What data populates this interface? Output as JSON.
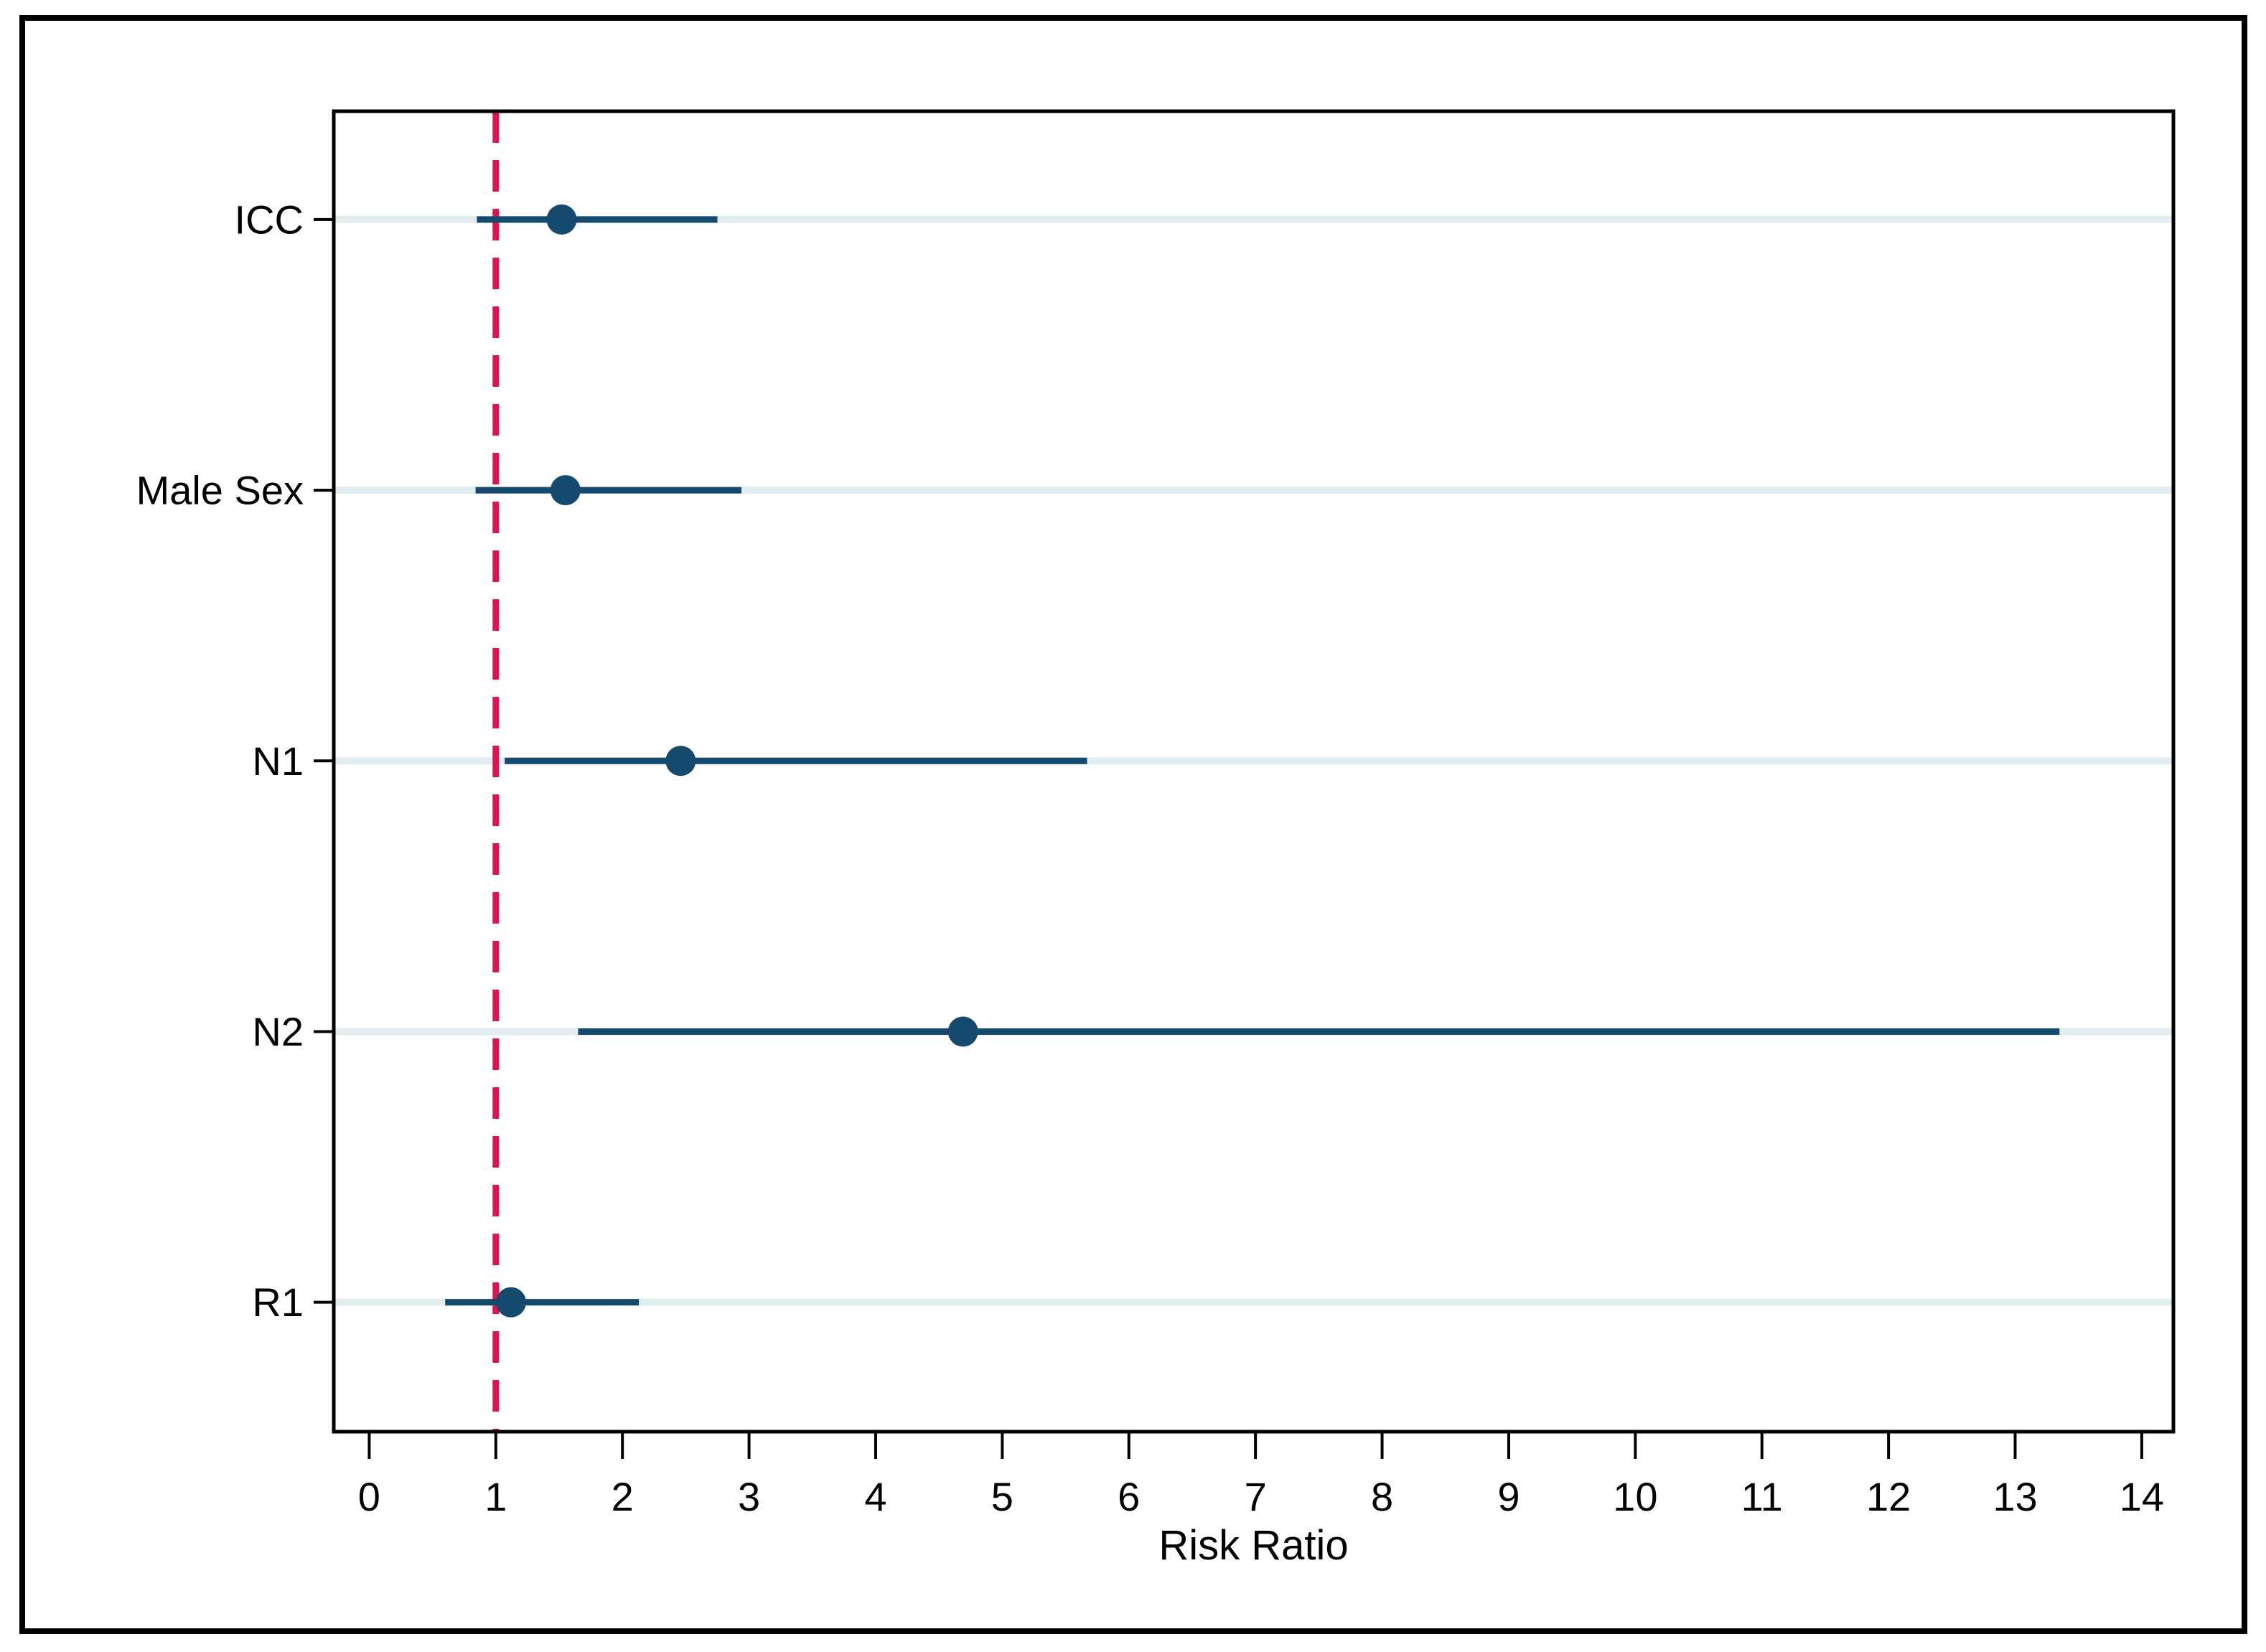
{
  "figure": {
    "background_color": "#ffffff",
    "border_color": "#000000"
  },
  "chart_data": {
    "type": "scatter",
    "subtype": "forest-plot",
    "orientation": "horizontal",
    "title": "",
    "xlabel": "Risk Ratio",
    "ylabel": "",
    "xlim": [
      -0.28,
      14.25
    ],
    "x_ticks": [
      0,
      1,
      2,
      3,
      4,
      5,
      6,
      7,
      8,
      9,
      10,
      11,
      12,
      13,
      14
    ],
    "grid": "pale horizontal guide line at each category row, full plot width",
    "legend": "none",
    "categories": [
      "ICC",
      "Male Sex",
      "N1",
      "N2",
      "R1"
    ],
    "rows": [
      {
        "label": "ICC",
        "estimate": 1.52,
        "ci_low": 0.85,
        "ci_high": 2.75
      },
      {
        "label": "Male Sex",
        "estimate": 1.55,
        "ci_low": 0.84,
        "ci_high": 2.94
      },
      {
        "label": "N1",
        "estimate": 2.46,
        "ci_low": 1.07,
        "ci_high": 5.67
      },
      {
        "label": "N2",
        "estimate": 4.69,
        "ci_low": 1.65,
        "ci_high": 13.35
      },
      {
        "label": "R1",
        "estimate": 1.12,
        "ci_low": 0.6,
        "ci_high": 2.13
      }
    ],
    "reference_line": {
      "x": 1,
      "style": "dashed",
      "color": "#e0134e"
    },
    "colors": {
      "marker": "#15496d",
      "ci_line": "#15496d",
      "row_guide": "#e2edf0",
      "axis": "#000000",
      "text": "#000000"
    }
  }
}
